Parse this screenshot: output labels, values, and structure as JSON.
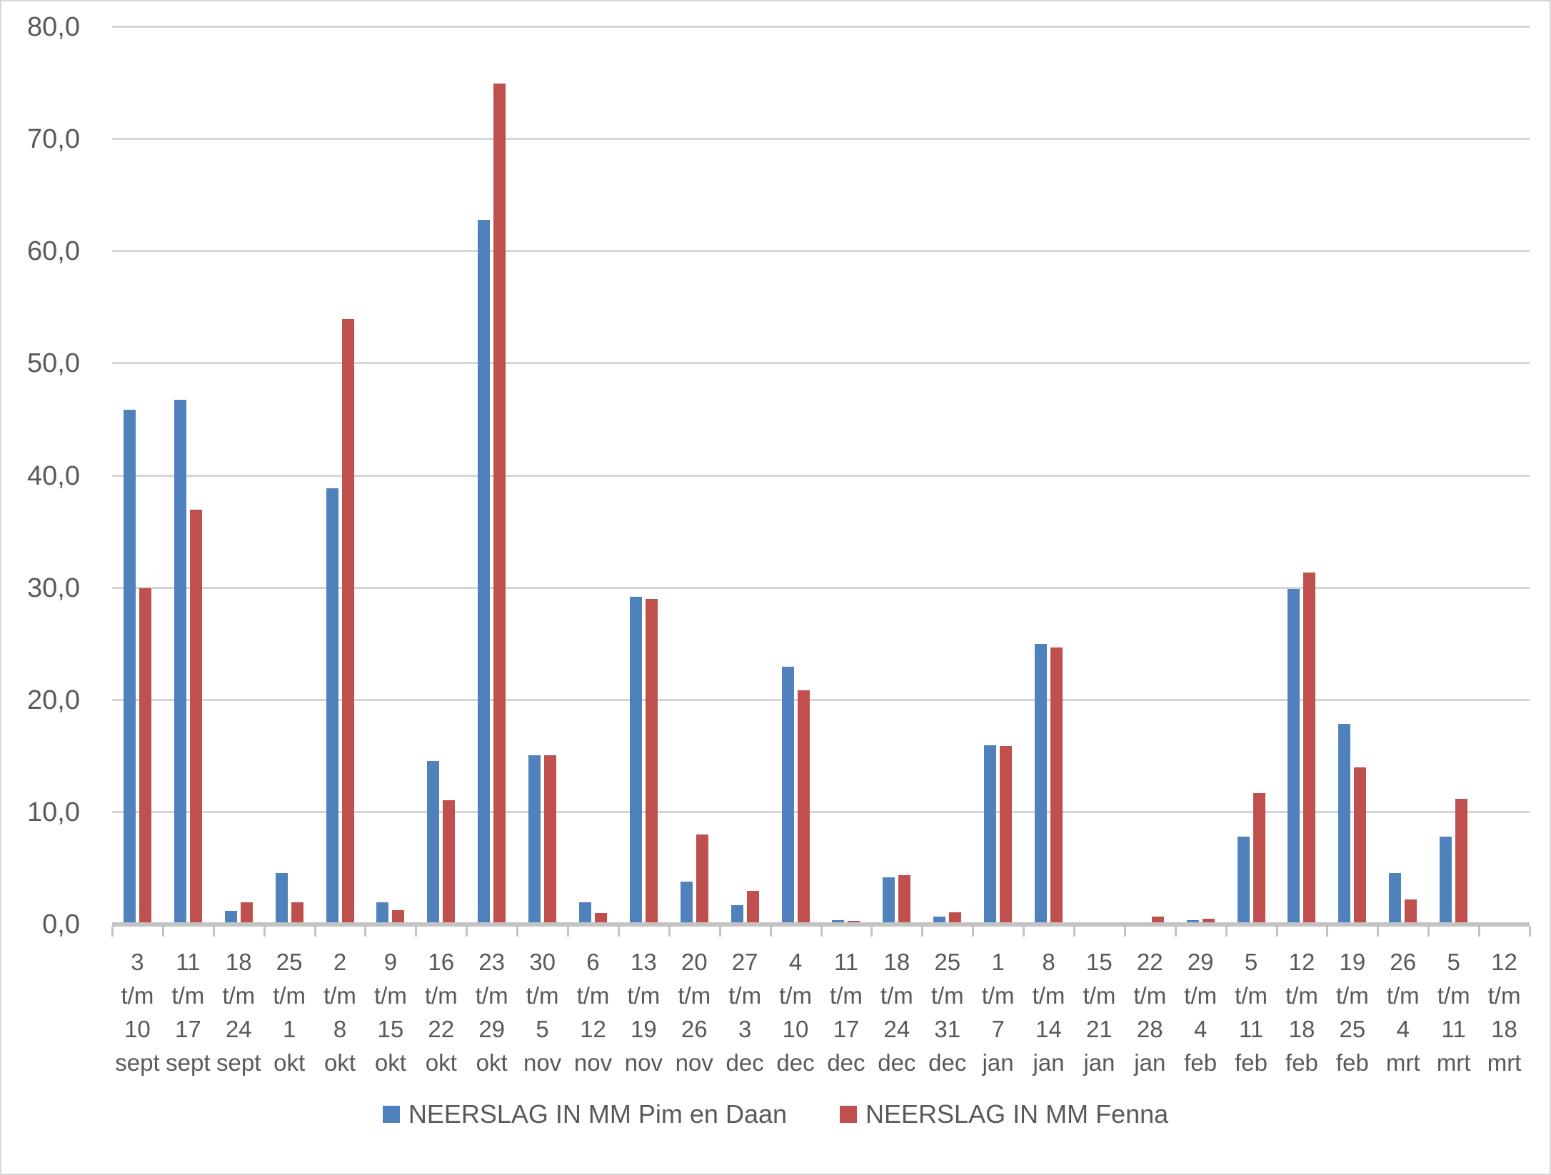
{
  "chart_data": {
    "type": "bar",
    "title": "",
    "xlabel": "",
    "ylabel": "",
    "ylim": [
      0,
      80
    ],
    "y_step": 10,
    "y_ticks": [
      "0,0",
      "10,0",
      "20,0",
      "30,0",
      "40,0",
      "50,0",
      "60,0",
      "70,0",
      "80,0"
    ],
    "grid": true,
    "legend_position": "bottom",
    "categories": [
      "3 t/m 10 sept",
      "11 t/m 17 sept",
      "18 t/m 24 sept",
      "25 t/m 1 okt",
      "2 t/m 8 okt",
      "9 t/m 15 okt",
      "16 t/m 22 okt",
      "23 t/m 29 okt",
      "30 t/m 5 nov",
      "6 t/m 12 nov",
      "13 t/m 19 nov",
      "20 t/m 26 nov",
      "27 t/m 3 dec",
      "4 t/m 10 dec",
      "11 t/m 17 dec",
      "18 t/m 24 dec",
      "25 t/m 31 dec",
      "1 t/m 7 jan",
      "8 t/m 14 jan",
      "15 t/m 21 jan",
      "22 t/m 28 jan",
      "29 t/m 4 feb",
      "5 t/m 11 feb",
      "12 t/m 18 feb",
      "19 t/m 25 feb",
      "26 t/m 4 mrt",
      "5 t/m 11 mrt",
      "12 t/m 18 mrt"
    ],
    "category_lines": [
      [
        "3",
        "t/m",
        "10",
        "sept"
      ],
      [
        "11",
        "t/m",
        "17",
        "sept"
      ],
      [
        "18",
        "t/m",
        "24",
        "sept"
      ],
      [
        "25",
        "t/m",
        "1",
        "okt"
      ],
      [
        "2",
        "t/m",
        "8",
        "okt"
      ],
      [
        "9",
        "t/m",
        "15",
        "okt"
      ],
      [
        "16",
        "t/m",
        "22",
        "okt"
      ],
      [
        "23",
        "t/m",
        "29",
        "okt"
      ],
      [
        "30",
        "t/m",
        "5",
        "nov"
      ],
      [
        "6",
        "t/m",
        "12",
        "nov"
      ],
      [
        "13",
        "t/m",
        "19",
        "nov"
      ],
      [
        "20",
        "t/m",
        "26",
        "nov"
      ],
      [
        "27",
        "t/m",
        "3",
        "dec"
      ],
      [
        "4",
        "t/m",
        "10",
        "dec"
      ],
      [
        "11",
        "t/m",
        "17",
        "dec"
      ],
      [
        "18",
        "t/m",
        "24",
        "dec"
      ],
      [
        "25",
        "t/m",
        "31",
        "dec"
      ],
      [
        "1",
        "t/m",
        "7",
        "jan"
      ],
      [
        "8",
        "t/m",
        "14",
        "jan"
      ],
      [
        "15",
        "t/m",
        "21",
        "jan"
      ],
      [
        "22",
        "t/m",
        "28",
        "jan"
      ],
      [
        "29",
        "t/m",
        "4",
        "feb"
      ],
      [
        "5",
        "t/m",
        "11",
        "feb"
      ],
      [
        "12",
        "t/m",
        "18",
        "feb"
      ],
      [
        "19",
        "t/m",
        "25",
        "feb"
      ],
      [
        "26",
        "t/m",
        "4",
        "mrt"
      ],
      [
        "5",
        "t/m",
        "11",
        "mrt"
      ],
      [
        "12",
        "t/m",
        "18",
        "mrt"
      ]
    ],
    "series": [
      {
        "name": "NEERSLAG IN MM Pim en Daan",
        "color": "#4F81BD",
        "values": [
          45.9,
          46.8,
          1.2,
          4.6,
          38.9,
          2.0,
          14.6,
          62.8,
          15.1,
          2.0,
          29.2,
          3.8,
          1.7,
          23.0,
          0.4,
          4.2,
          0.7,
          16.0,
          25.0,
          0,
          0.2,
          0.4,
          7.8,
          29.9,
          17.9,
          4.6,
          7.8,
          0
        ]
      },
      {
        "name": "NEERSLAG IN MM Fenna",
        "color": "#C0504D",
        "values": [
          30.0,
          37.0,
          2.0,
          2.0,
          54.0,
          1.3,
          11.1,
          75.0,
          15.1,
          1.0,
          29.0,
          8.0,
          3.0,
          20.9,
          0.3,
          4.4,
          1.1,
          15.9,
          24.7,
          0,
          0.7,
          0.5,
          11.7,
          31.4,
          14.0,
          2.2,
          11.2,
          0
        ]
      }
    ],
    "colors": {
      "gridline": "#d6d6d6",
      "axis_line": "#c3c3c3",
      "tick_text": "#595959",
      "background": "#ffffff"
    }
  }
}
